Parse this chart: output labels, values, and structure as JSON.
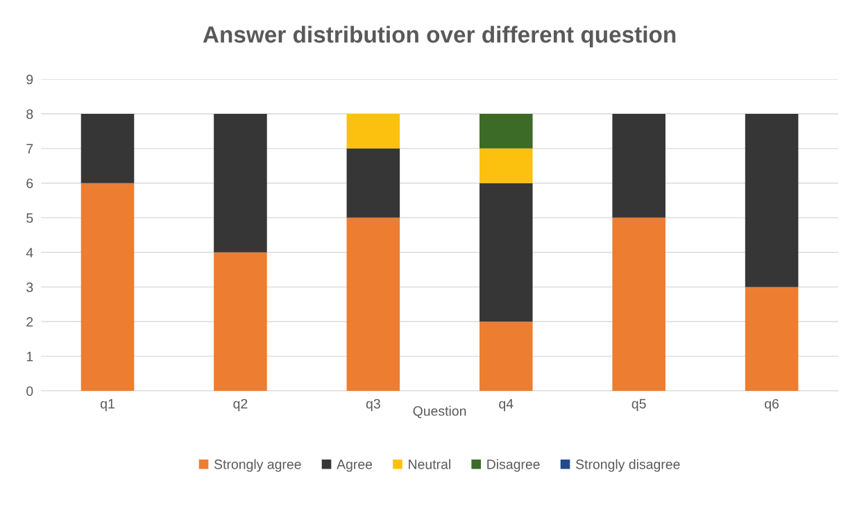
{
  "chart_data": {
    "type": "bar",
    "title": "Answer distribution over different question",
    "xlabel": "Question",
    "categories": [
      "q1",
      "q2",
      "q3",
      "q4",
      "q5",
      "q6"
    ],
    "stacked": true,
    "ylim": [
      0,
      9
    ],
    "yticks": [
      0,
      1,
      2,
      3,
      4,
      5,
      6,
      7,
      8,
      9
    ],
    "grid": "y",
    "legend": "bottom",
    "series": [
      {
        "name": "Strongly agree",
        "color": "#ed7d31",
        "values": [
          6,
          4,
          5,
          2,
          5,
          3
        ]
      },
      {
        "name": "Agree",
        "color": "#363636",
        "values": [
          2,
          4,
          2,
          4,
          3,
          5
        ]
      },
      {
        "name": "Neutral",
        "color": "#fcc10e",
        "values": [
          0,
          0,
          1,
          1,
          0,
          0
        ]
      },
      {
        "name": "Disagree",
        "color": "#3b6b26",
        "values": [
          0,
          0,
          0,
          1,
          0,
          0
        ]
      },
      {
        "name": "Strongly disagree",
        "color": "#234a8a",
        "values": [
          0,
          0,
          0,
          0,
          0,
          0
        ]
      }
    ]
  }
}
